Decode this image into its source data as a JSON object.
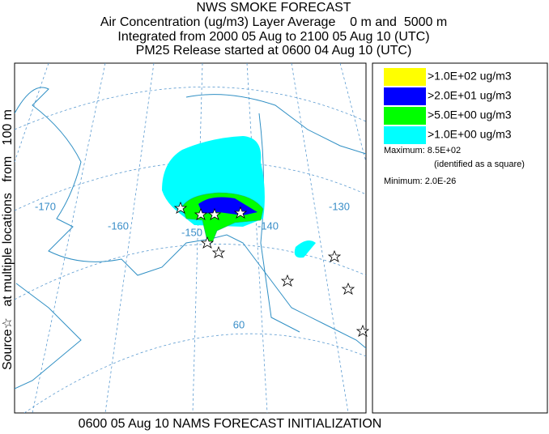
{
  "header": {
    "title": "NWS SMOKE FORECAST",
    "lines": [
      "Air Concentration (ug/m3) Layer Average    0 m and  5000 m",
      "Integrated from 2000 05 Aug to 2100 05 Aug 10 (UTC)",
      "PM25 Release started at 0600 04 Aug 10 (UTC)"
    ]
  },
  "side_label": "Source☆   at multiple locations   from   100 m",
  "map": {
    "labels": [
      "-170",
      "-160",
      "-150",
      "-140",
      "-130",
      "60"
    ]
  },
  "legend": {
    "items": [
      {
        "label": ">1.0E+02 ug/m3",
        "color": "#ffff00"
      },
      {
        "label": ">2.0E+01 ug/m3",
        "color": "#0000ff"
      },
      {
        "label": ">5.0E+00 ug/m3",
        "color": "#00ff00"
      },
      {
        "label": ">1.0E+00 ug/m3",
        "color": "#00ffff"
      }
    ],
    "maximum": "Maximum: 8.5E+02",
    "max_note": "(identified as a square)",
    "minimum": "Minimum: 2.0E-26"
  },
  "footer": "0600 05 Aug 10 NAMS FORECAST INITIALIZATION"
}
